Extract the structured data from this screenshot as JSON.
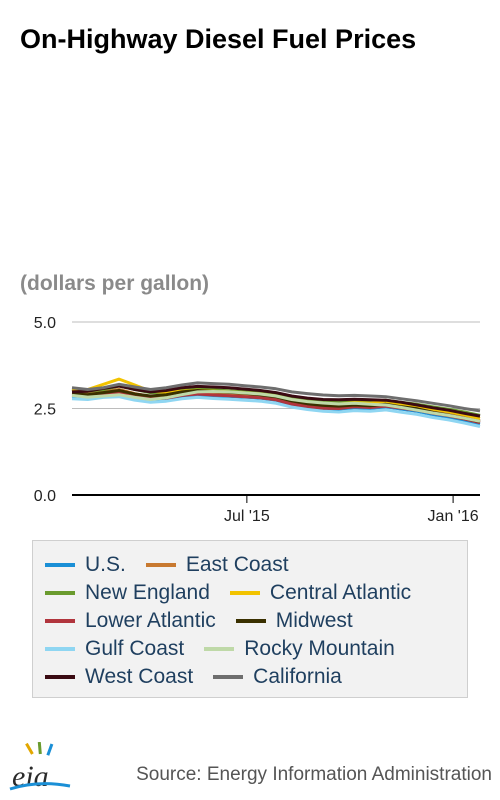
{
  "header": {
    "title": "On-Highway Diesel Fuel Prices",
    "units": "(dollars per gallon)"
  },
  "footer": {
    "logo_text": "eia",
    "source": "Source: Energy Information Administration"
  },
  "colors": {
    "U.S.": "#1a8fd6",
    "East Coast": "#c87930",
    "New England": "#6a9b2e",
    "Central Atlantic": "#f2c300",
    "Lower Atlantic": "#b1353d",
    "Midwest": "#3a3000",
    "Gulf Coast": "#8fd6f2",
    "Rocky Mountain": "#bfd9a8",
    "West Coast": "#3a0a12",
    "California": "#6e6e6e"
  },
  "chart_data": {
    "type": "line",
    "x": [
      "2015-01-26",
      "2015-02-09",
      "2015-02-23",
      "2015-03-09",
      "2015-03-23",
      "2015-04-06",
      "2015-04-20",
      "2015-05-04",
      "2015-05-18",
      "2015-06-01",
      "2015-06-15",
      "2015-06-29",
      "2015-07-13",
      "2015-07-27",
      "2015-08-10",
      "2015-08-24",
      "2015-09-07",
      "2015-09-21",
      "2015-10-05",
      "2015-10-19",
      "2015-11-02",
      "2015-11-16",
      "2015-11-30",
      "2015-12-14",
      "2015-12-28",
      "2016-01-11",
      "2016-01-25"
    ],
    "x_tick_labels": [
      {
        "x": "2015-07-01",
        "label": "Jul '15"
      },
      {
        "x": "2016-01-01",
        "label": "Jan '16"
      }
    ],
    "ylim": [
      0,
      5
    ],
    "y_ticks": [
      0,
      2.5,
      5
    ],
    "y_tick_labels": [
      "0.0",
      "2.5",
      "5.0"
    ],
    "ylabel": "(dollars per gallon)",
    "legend_placement": "bottom",
    "grid": "horizontal",
    "series": [
      {
        "name": "U.S.",
        "values": [
          2.85,
          2.84,
          2.9,
          2.92,
          2.82,
          2.76,
          2.79,
          2.86,
          2.9,
          2.87,
          2.85,
          2.83,
          2.8,
          2.74,
          2.62,
          2.55,
          2.5,
          2.48,
          2.52,
          2.5,
          2.55,
          2.48,
          2.42,
          2.32,
          2.25,
          2.16,
          2.05
        ]
      },
      {
        "name": "East Coast",
        "values": [
          2.95,
          2.92,
          2.98,
          3.05,
          2.93,
          2.85,
          2.86,
          2.94,
          2.97,
          2.95,
          2.93,
          2.9,
          2.87,
          2.8,
          2.68,
          2.6,
          2.56,
          2.55,
          2.6,
          2.59,
          2.62,
          2.57,
          2.5,
          2.42,
          2.35,
          2.26,
          2.15
        ]
      },
      {
        "name": "New England",
        "values": [
          3.05,
          3.0,
          3.05,
          3.15,
          3.05,
          2.96,
          2.97,
          3.02,
          3.06,
          3.04,
          3.01,
          2.98,
          2.95,
          2.9,
          2.79,
          2.72,
          2.69,
          2.67,
          2.71,
          2.7,
          2.74,
          2.68,
          2.62,
          2.55,
          2.48,
          2.4,
          2.3
        ]
      },
      {
        "name": "Central Atlantic",
        "values": [
          3.02,
          3.05,
          3.2,
          3.35,
          3.18,
          3.0,
          2.97,
          3.0,
          3.03,
          3.0,
          2.98,
          2.95,
          2.92,
          2.86,
          2.75,
          2.68,
          2.64,
          2.62,
          2.67,
          2.65,
          2.69,
          2.63,
          2.57,
          2.48,
          2.41,
          2.32,
          2.21
        ]
      },
      {
        "name": "Lower Atlantic",
        "values": [
          2.88,
          2.86,
          2.92,
          2.98,
          2.86,
          2.78,
          2.8,
          2.88,
          2.92,
          2.89,
          2.87,
          2.84,
          2.81,
          2.75,
          2.63,
          2.56,
          2.51,
          2.5,
          2.55,
          2.53,
          2.57,
          2.51,
          2.45,
          2.36,
          2.29,
          2.2,
          2.09
        ]
      },
      {
        "name": "Midwest",
        "values": [
          2.92,
          2.9,
          2.96,
          3.02,
          2.92,
          2.86,
          2.9,
          2.98,
          3.02,
          2.99,
          2.97,
          2.94,
          2.9,
          2.84,
          2.72,
          2.64,
          2.59,
          2.57,
          2.6,
          2.58,
          2.62,
          2.55,
          2.49,
          2.39,
          2.31,
          2.22,
          2.12
        ]
      },
      {
        "name": "Gulf Coast",
        "values": [
          2.78,
          2.76,
          2.82,
          2.84,
          2.74,
          2.68,
          2.71,
          2.78,
          2.82,
          2.79,
          2.77,
          2.74,
          2.71,
          2.65,
          2.54,
          2.47,
          2.42,
          2.4,
          2.44,
          2.42,
          2.46,
          2.39,
          2.33,
          2.24,
          2.17,
          2.08,
          1.98
        ]
      },
      {
        "name": "Rocky Mountain",
        "values": [
          2.88,
          2.83,
          2.86,
          2.9,
          2.82,
          2.76,
          2.81,
          2.9,
          2.98,
          2.99,
          2.98,
          2.95,
          2.92,
          2.86,
          2.76,
          2.7,
          2.66,
          2.63,
          2.65,
          2.62,
          2.6,
          2.53,
          2.45,
          2.37,
          2.3,
          2.22,
          2.13
        ]
      },
      {
        "name": "West Coast",
        "values": [
          2.98,
          3.0,
          3.08,
          3.15,
          3.05,
          2.98,
          3.02,
          3.1,
          3.14,
          3.12,
          3.1,
          3.06,
          3.02,
          2.96,
          2.86,
          2.8,
          2.76,
          2.75,
          2.77,
          2.75,
          2.74,
          2.68,
          2.6,
          2.52,
          2.45,
          2.36,
          2.28
        ]
      },
      {
        "name": "California",
        "values": [
          3.1,
          3.05,
          3.1,
          3.2,
          3.12,
          3.05,
          3.1,
          3.18,
          3.24,
          3.22,
          3.2,
          3.16,
          3.12,
          3.07,
          2.98,
          2.93,
          2.89,
          2.87,
          2.88,
          2.86,
          2.84,
          2.78,
          2.72,
          2.65,
          2.58,
          2.5,
          2.43
        ]
      }
    ]
  }
}
